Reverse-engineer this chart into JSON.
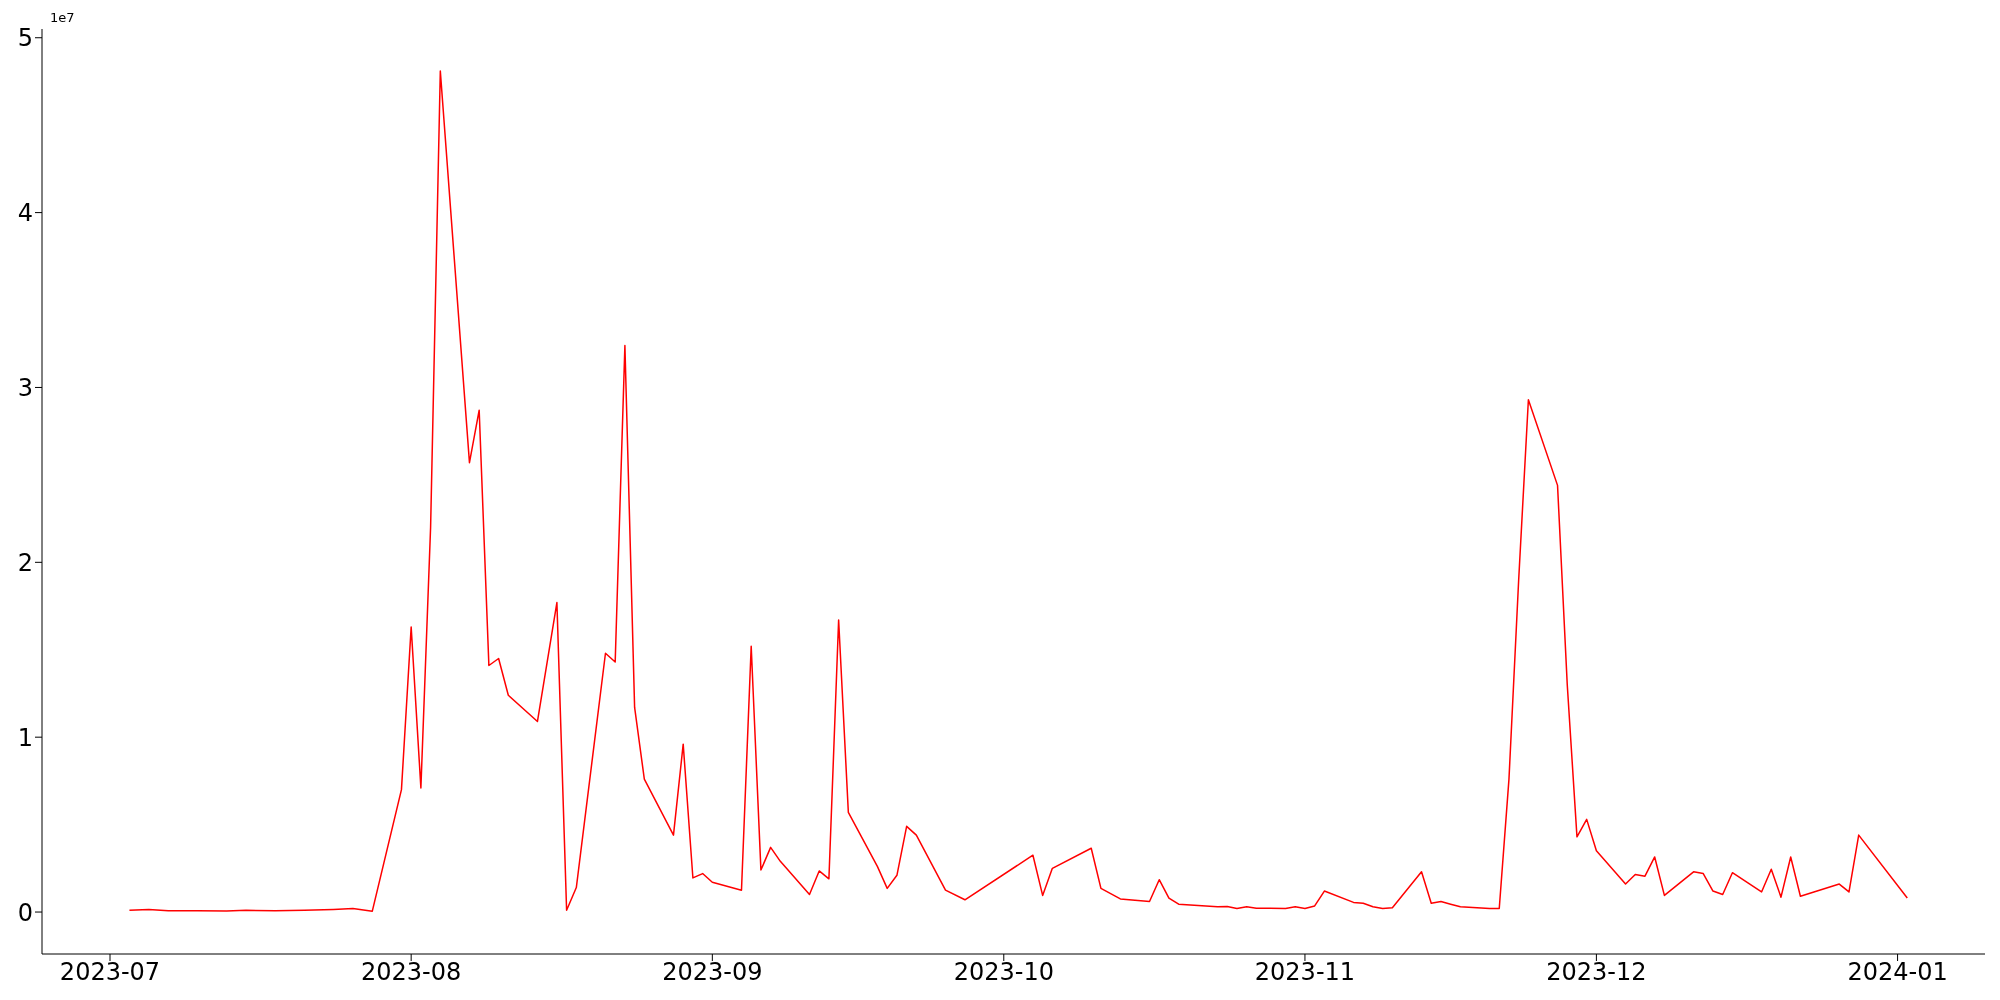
{
  "chart_data": {
    "type": "line",
    "annotations": [
      "1e7"
    ],
    "x": [
      "2023-07-03",
      "2023-07-05",
      "2023-07-07",
      "2023-07-10",
      "2023-07-13",
      "2023-07-15",
      "2023-07-18",
      "2023-07-21",
      "2023-07-24",
      "2023-07-26",
      "2023-07-28",
      "2023-07-31",
      "2023-08-01",
      "2023-08-02",
      "2023-08-03",
      "2023-08-04",
      "2023-08-07",
      "2023-08-08",
      "2023-08-09",
      "2023-08-10",
      "2023-08-11",
      "2023-08-14",
      "2023-08-16",
      "2023-08-17",
      "2023-08-18",
      "2023-08-21",
      "2023-08-22",
      "2023-08-23",
      "2023-08-24",
      "2023-08-25",
      "2023-08-28",
      "2023-08-29",
      "2023-08-30",
      "2023-08-31",
      "2023-09-01",
      "2023-09-04",
      "2023-09-05",
      "2023-09-06",
      "2023-09-07",
      "2023-09-08",
      "2023-09-11",
      "2023-09-12",
      "2023-09-13",
      "2023-09-14",
      "2023-09-15",
      "2023-09-18",
      "2023-09-19",
      "2023-09-20",
      "2023-09-21",
      "2023-09-22",
      "2023-09-25",
      "2023-09-27",
      "2023-10-04",
      "2023-10-05",
      "2023-10-06",
      "2023-10-10",
      "2023-10-11",
      "2023-10-13",
      "2023-10-16",
      "2023-10-17",
      "2023-10-18",
      "2023-10-19",
      "2023-10-23",
      "2023-10-24",
      "2023-10-25",
      "2023-10-26",
      "2023-10-27",
      "2023-10-30",
      "2023-10-31",
      "2023-11-01",
      "2023-11-02",
      "2023-11-03",
      "2023-11-06",
      "2023-11-07",
      "2023-11-08",
      "2023-11-09",
      "2023-11-10",
      "2023-11-13",
      "2023-11-14",
      "2023-11-15",
      "2023-11-16",
      "2023-11-17",
      "2023-11-20",
      "2023-11-21",
      "2023-11-22",
      "2023-11-23",
      "2023-11-24",
      "2023-11-27",
      "2023-11-28",
      "2023-11-29",
      "2023-11-30",
      "2023-12-01",
      "2023-12-04",
      "2023-12-05",
      "2023-12-06",
      "2023-12-07",
      "2023-12-08",
      "2023-12-11",
      "2023-12-12",
      "2023-12-13",
      "2023-12-14",
      "2023-12-15",
      "2023-12-18",
      "2023-12-19",
      "2023-12-20",
      "2023-12-21",
      "2023-12-22",
      "2023-12-26",
      "2023-12-27",
      "2023-12-28",
      "2024-01-02"
    ],
    "series": [
      {
        "color": "#ff0000",
        "values": [
          0.01,
          0.015,
          0.008,
          0.007,
          0.006,
          0.01,
          0.008,
          0.01,
          0.015,
          0.02,
          0.005,
          0.7,
          1.63,
          0.71,
          2.2,
          4.81,
          2.57,
          2.87,
          1.41,
          1.45,
          1.24,
          1.09,
          1.77,
          0.01,
          0.14,
          1.48,
          1.43,
          3.24,
          1.17,
          0.76,
          0.44,
          0.96,
          0.195,
          0.22,
          0.17,
          0.125,
          1.52,
          0.24,
          0.37,
          0.29,
          0.1,
          0.235,
          0.19,
          1.67,
          0.57,
          0.26,
          0.135,
          0.21,
          0.49,
          0.44,
          0.125,
          0.07,
          0.325,
          0.095,
          0.25,
          0.365,
          0.135,
          0.075,
          0.06,
          0.185,
          0.08,
          0.045,
          0.03,
          0.032,
          0.02,
          0.03,
          0.022,
          0.02,
          0.03,
          0.02,
          0.035,
          0.12,
          0.055,
          0.05,
          0.03,
          0.02,
          0.025,
          0.23,
          0.05,
          0.06,
          0.045,
          0.03,
          0.02,
          0.02,
          0.76,
          1.9,
          2.93,
          2.44,
          1.3,
          0.43,
          0.53,
          0.35,
          0.16,
          0.215,
          0.205,
          0.315,
          0.095,
          0.23,
          0.22,
          0.12,
          0.1,
          0.225,
          0.115,
          0.245,
          0.085,
          0.315,
          0.09,
          0.16,
          0.115,
          0.44,
          0.08
        ]
      }
    ],
    "xlim": [
      "2023-06-24",
      "2024-01-10"
    ],
    "xticks": [
      "2023-07",
      "2023-08",
      "2023-09",
      "2023-10",
      "2023-11",
      "2023-12",
      "2024-01"
    ],
    "ylim": [
      -0.24,
      5.05
    ],
    "yticks": [
      0,
      1,
      2,
      3,
      4,
      5
    ]
  }
}
